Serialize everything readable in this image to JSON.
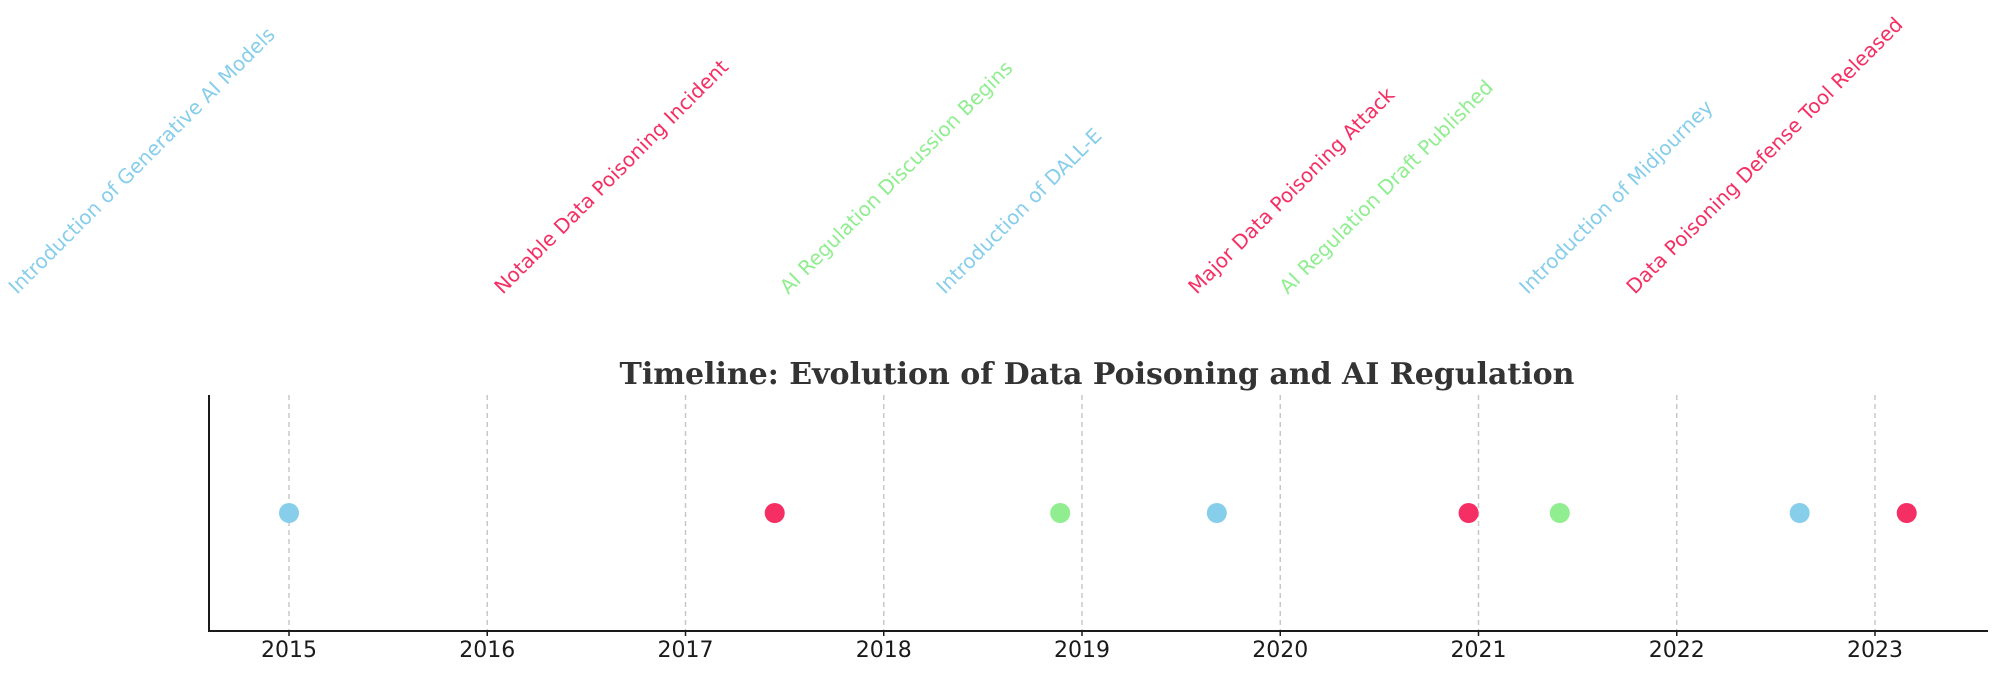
{
  "chart_data": {
    "type": "scatter",
    "title": "Timeline: Evolution of Data Poisoning and AI Regulation",
    "xlabel": "",
    "ylabel": "",
    "xlim": [
      2014.6,
      2023.57
    ],
    "grid": "vertical dashed",
    "colors": {
      "ai_models": "#87ceeb",
      "data_poisoning": "#f52f63",
      "regulation": "#90ee90"
    },
    "x_ticks": [
      2015,
      2016,
      2017,
      2018,
      2019,
      2020,
      2021,
      2022,
      2023
    ],
    "x_tick_labels": [
      "2015",
      "2016",
      "2017",
      "2018",
      "2019",
      "2020",
      "2021",
      "2022",
      "2023"
    ],
    "events": [
      {
        "x": 2015.0,
        "label": "Introduction of Generative AI Models",
        "category": "ai_models"
      },
      {
        "x": 2017.45,
        "label": "Notable Data Poisoning Incident",
        "category": "data_poisoning"
      },
      {
        "x": 2018.89,
        "label": "AI Regulation Discussion Begins",
        "category": "regulation"
      },
      {
        "x": 2019.68,
        "label": "Introduction of DALL-E",
        "category": "ai_models"
      },
      {
        "x": 2020.95,
        "label": "Major Data Poisoning Attack",
        "category": "data_poisoning"
      },
      {
        "x": 2021.41,
        "label": "AI Regulation Draft Published",
        "category": "regulation"
      },
      {
        "x": 2022.62,
        "label": "Introduction of Midjourney",
        "category": "ai_models"
      },
      {
        "x": 2023.16,
        "label": "Data Poisoning Defense Tool Released",
        "category": "data_poisoning"
      }
    ]
  }
}
